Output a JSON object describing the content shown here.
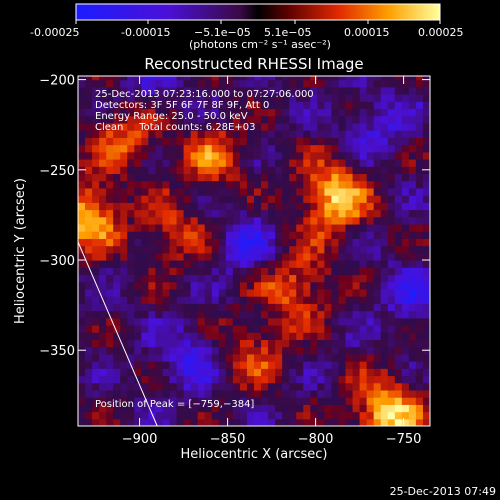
{
  "colorbar": {
    "tick_labels": [
      "-0.00025",
      "-0.00015",
      "−5.1e−05",
      "5.1e−05",
      "0.00015",
      "0.00025"
    ],
    "unit_label": "(photons cm⁻² s⁻¹ asec⁻²)",
    "range": [
      -0.00025,
      0.00025
    ]
  },
  "chart_data": {
    "type": "heatmap",
    "title": "Reconstructed RHESSI Image",
    "xlabel": "Heliocentric X (arcsec)",
    "ylabel": "Heliocentric Y (arcsec)",
    "xlim": [
      -935,
      -735
    ],
    "ylim": [
      -392,
      -198
    ],
    "x_tick_labels": [
      "−900",
      "−850",
      "−800",
      "−750"
    ],
    "y_tick_labels": [
      "−200",
      "−250",
      "−300",
      "−350"
    ],
    "annotations": [
      "25-Dec-2013 07:23:16.000 to 07:27:06.000",
      "Detectors: 3F 5F 6F 7F 8F 9F, Att 0",
      "Energy Range: 25.0 - 50.0 keV",
      "Clean     Total counts: 6.28E+03"
    ],
    "peak_label": "Position of Peak = [−759,−384]",
    "peak_position": [
      -759,
      -384
    ],
    "limb_line_points": [
      [
        -935,
        -290
      ],
      [
        -890,
        -392
      ]
    ],
    "hotspots": [
      {
        "x": -790,
        "y": -265,
        "value": 0.00024
      },
      {
        "x": -760,
        "y": -385,
        "value": 0.00025
      },
      {
        "x": -930,
        "y": -275,
        "value": 0.00022
      },
      {
        "x": -858,
        "y": -242,
        "value": 0.00014
      },
      {
        "x": -810,
        "y": -315,
        "value": 0.00016
      },
      {
        "x": -908,
        "y": -230,
        "value": 0.00015
      },
      {
        "x": -835,
        "y": -350,
        "value": 0.00013
      },
      {
        "x": -880,
        "y": -285,
        "value": 0.00012
      }
    ],
    "coldspots": [
      {
        "x": -840,
        "y": -290,
        "value": -0.00012
      },
      {
        "x": -872,
        "y": -355,
        "value": -0.00013
      },
      {
        "x": -765,
        "y": -225,
        "value": -0.00011
      },
      {
        "x": -745,
        "y": -318,
        "value": -0.00012
      },
      {
        "x": -895,
        "y": -205,
        "value": -9e-05
      }
    ]
  },
  "footer_timestamp": "25-Dec-2013 07:49"
}
